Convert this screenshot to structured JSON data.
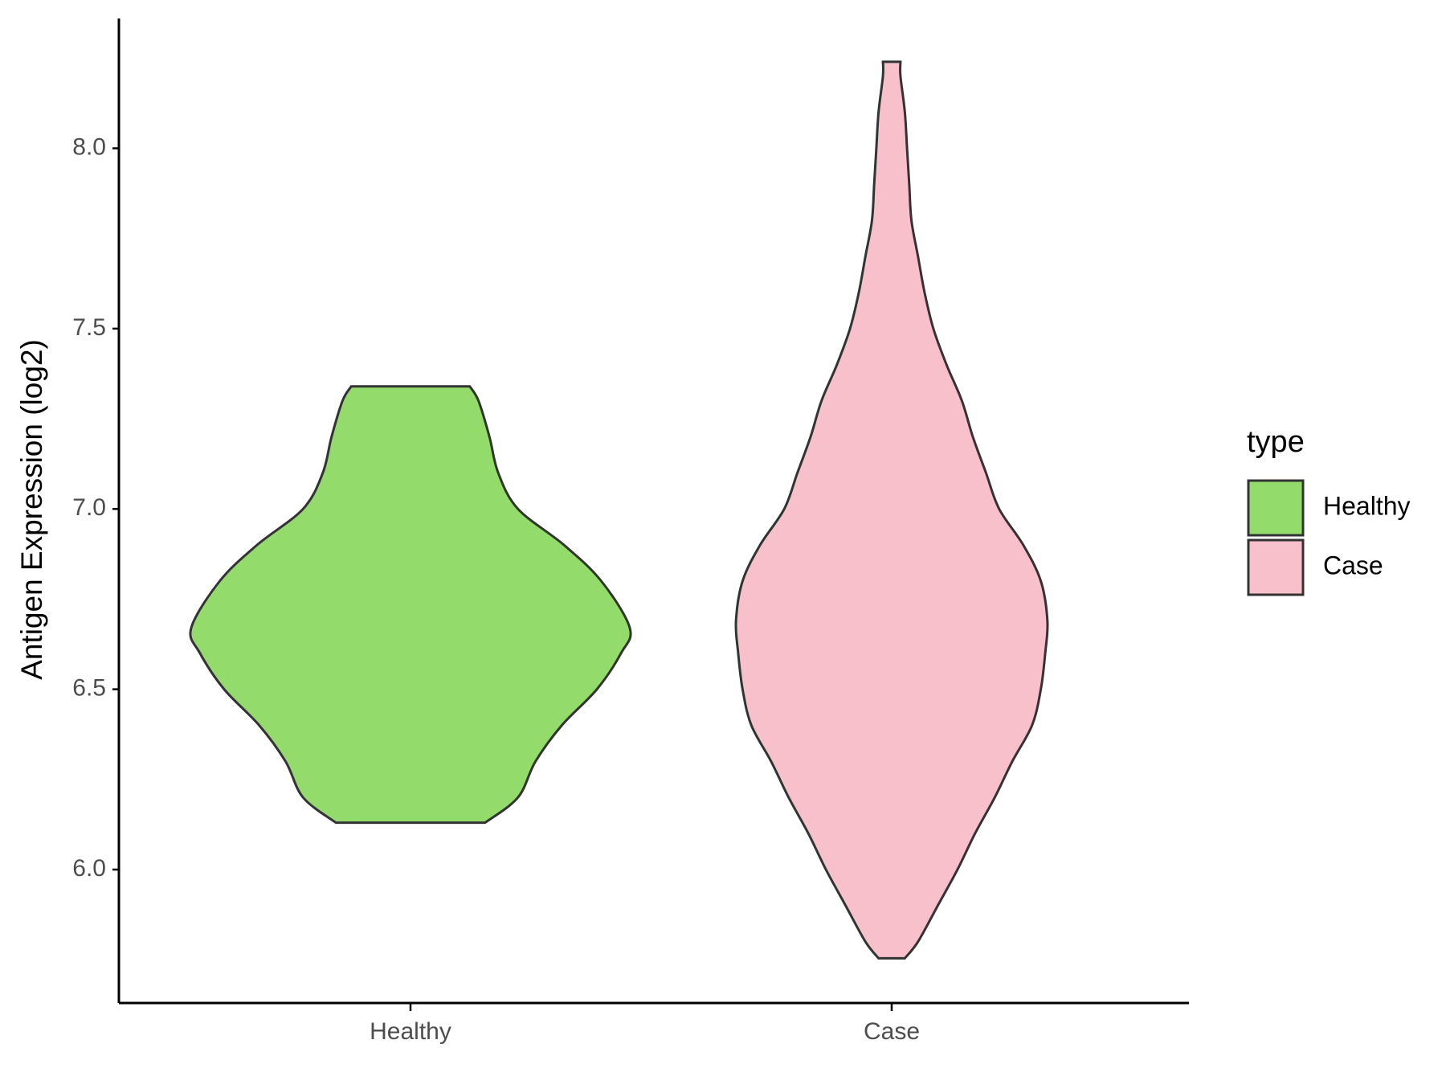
{
  "chart_data": {
    "type": "violin",
    "y_label": "Antigen Expression (log2)",
    "categories": [
      "Healthy",
      "Case"
    ],
    "legend_title": "type",
    "legend_position": "right",
    "ylim": [
      5.63,
      8.36
    ],
    "yticks": [
      {
        "value": 6,
        "label": "6.0"
      },
      6.5,
      {
        "value": 7,
        "label": "7.0"
      },
      7.5,
      {
        "value": 8,
        "label": "8.0"
      }
    ],
    "series": [
      {
        "name": "Healthy",
        "color": "#93db6b",
        "y": [
          6.13,
          6.2,
          6.3,
          6.4,
          6.5,
          6.6,
          6.67,
          6.8,
          6.9,
          7.0,
          7.1,
          7.2,
          7.3,
          7.34
        ],
        "density": [
          0.34,
          0.49,
          0.57,
          0.69,
          0.85,
          0.96,
          1.0,
          0.87,
          0.7,
          0.49,
          0.4,
          0.36,
          0.31,
          0.27
        ]
      },
      {
        "name": "Case",
        "color": "#f8c0cb",
        "y": [
          5.754,
          5.8,
          5.9,
          6.0,
          6.1,
          6.2,
          6.3,
          6.4,
          6.5,
          6.6,
          6.69,
          6.8,
          6.9,
          7.0,
          7.1,
          7.2,
          7.3,
          7.4,
          7.5,
          7.6,
          7.7,
          7.8,
          7.9,
          8.0,
          8.1,
          8.2,
          8.24
        ],
        "density": [
          0.06,
          0.12,
          0.21,
          0.3,
          0.38,
          0.47,
          0.55,
          0.64,
          0.68,
          0.7,
          0.71,
          0.68,
          0.6,
          0.49,
          0.43,
          0.37,
          0.32,
          0.25,
          0.19,
          0.15,
          0.12,
          0.09,
          0.08,
          0.07,
          0.06,
          0.04,
          0.04
        ]
      }
    ]
  }
}
